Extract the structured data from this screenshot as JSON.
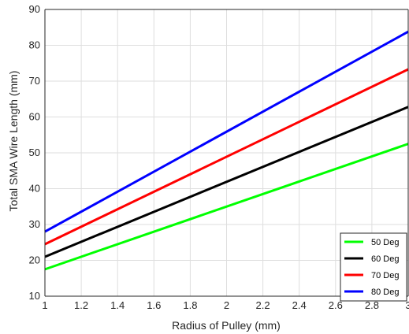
{
  "chart_data": {
    "type": "line",
    "title": "",
    "xlabel": "Radius of Pulley (mm)",
    "ylabel": "Total SMA Wire Length (mm)",
    "xlim": [
      1,
      3
    ],
    "ylim": [
      10,
      90
    ],
    "xticks": [
      "1",
      "1.2",
      "1.4",
      "1.6",
      "1.8",
      "2",
      "2.2",
      "2.4",
      "2.6",
      "2.8",
      "3"
    ],
    "yticks": [
      "10",
      "20",
      "30",
      "40",
      "50",
      "60",
      "70",
      "80",
      "90"
    ],
    "grid": true,
    "legend_position": "bottom-right",
    "x": [
      1,
      3
    ],
    "series": [
      {
        "name": "50 Deg",
        "color": "#00ff00",
        "values": [
          17.5,
          52.5
        ]
      },
      {
        "name": "60 Deg",
        "color": "#000000",
        "values": [
          21.0,
          62.8
        ]
      },
      {
        "name": "70 Deg",
        "color": "#ff0000",
        "values": [
          24.5,
          73.3
        ]
      },
      {
        "name": "80 Deg",
        "color": "#0000ff",
        "values": [
          28.0,
          83.8
        ]
      }
    ]
  }
}
